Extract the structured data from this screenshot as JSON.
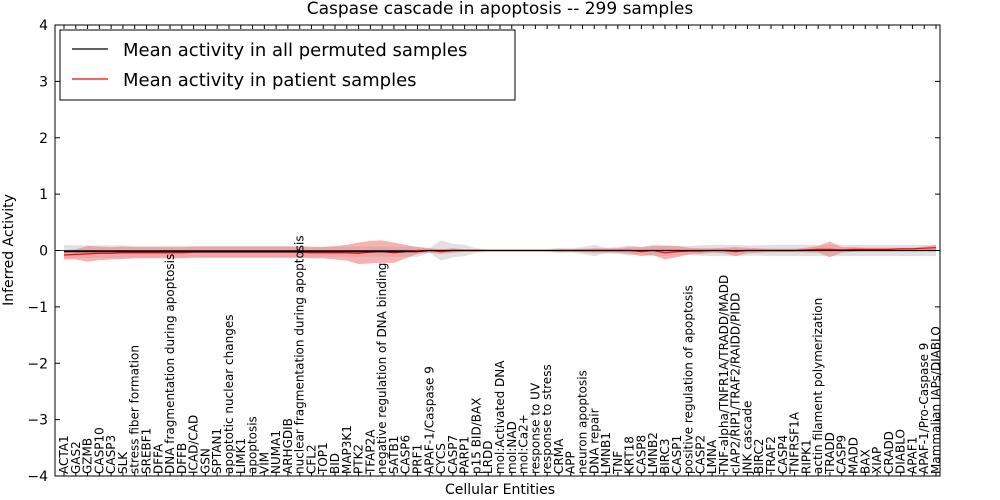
{
  "chart_data": {
    "type": "line",
    "title": "Caspase cascade in apoptosis -- 299 samples",
    "xlabel": "Cellular Entities",
    "ylabel": "Inferred Activity",
    "ylim": [
      -4,
      4
    ],
    "yticks": [
      -4,
      -3,
      -2,
      -1,
      0,
      1,
      2,
      3,
      4
    ],
    "ytick_labels": [
      "−4",
      "−3",
      "−2",
      "−1",
      "0",
      "1",
      "2",
      "3",
      "4"
    ],
    "legend_position": "top-left",
    "categories": [
      "ACTA1",
      "GAS2",
      "GZMB",
      "CASP10",
      "CASP3",
      "SLK",
      "stress fiber formation",
      "SREBF1",
      "DFFA",
      "DNA fragmentation during apoptosis",
      "DFFB",
      "ICAD/CAD",
      "GSN",
      "SPTAN1",
      "apoptotic nuclear changes",
      "LIMK1",
      "apoptosis",
      "VIM",
      "NUMA1",
      "ARHGDIB",
      "nuclear fragmentation during apoptosis",
      "CFL2",
      "TOP1",
      "BID",
      "MAP3K1",
      "PTK2",
      "TFAP2A",
      "negative regulation of DNA binding",
      "SATB1",
      "CASP6",
      "PRF1",
      "APAF-1/Caspase 9",
      "CYCS",
      "CASP7",
      "PARP1",
      "p15 BID/BAX",
      "LRDD",
      "mol:Activated DNA",
      "mol:NAD",
      "mol:Ca2+",
      "response to UV",
      "response to stress",
      "CRMA",
      "APP",
      "neuron apoptosis",
      "DNA repair",
      "LMNB1",
      "TNF",
      "KRT18",
      "CASP8",
      "LMNB2",
      "BIRC3",
      "CASP1",
      "positive regulation of apoptosis",
      "CASP2",
      "LMNA",
      "TNF-alpha/TNFR1A/TRADD/MADD",
      "cIAP2/RIP1/TRAF2/RAIDD/PIDD",
      "JNK cascade",
      "BIRC2",
      "TRAF2",
      "CASP4",
      "TNFRSF1A",
      "RIPK1",
      "actin filament polymerization",
      "TRADD",
      "CASP9",
      "MADD",
      "BAX",
      "XIAP",
      "CRADD",
      "DIABLO",
      "APAF1",
      "APAF-1/Pro-Caspase 9",
      "Mammalian IAPs/DIABLO"
    ],
    "series": [
      {
        "name": "Mean activity in all permuted samples",
        "color": "#000000",
        "values": [
          -0.02,
          -0.02,
          -0.02,
          -0.02,
          -0.02,
          -0.02,
          -0.02,
          -0.02,
          -0.02,
          -0.02,
          -0.02,
          -0.02,
          -0.02,
          -0.02,
          -0.02,
          -0.02,
          -0.02,
          -0.02,
          -0.02,
          -0.02,
          -0.02,
          -0.02,
          -0.02,
          -0.02,
          -0.02,
          -0.02,
          -0.02,
          -0.02,
          -0.02,
          -0.02,
          -0.02,
          0,
          0,
          0,
          0,
          0,
          0,
          0,
          0,
          0,
          0,
          0,
          0,
          0,
          0,
          0,
          0,
          0,
          0,
          0,
          0,
          0,
          0,
          0,
          0,
          0,
          0,
          0,
          0,
          0,
          0,
          0,
          0,
          0,
          0,
          0,
          0,
          0,
          0,
          0,
          0,
          0,
          0,
          0,
          0
        ],
        "band": [
          0.12,
          0.11,
          0.11,
          0.11,
          0.11,
          0.11,
          0.1,
          0.1,
          0.1,
          0.1,
          0.1,
          0.1,
          0.1,
          0.1,
          0.1,
          0.1,
          0.1,
          0.1,
          0.1,
          0.1,
          0.1,
          0.09,
          0.09,
          0.09,
          0.09,
          0.09,
          0.09,
          0.09,
          0.09,
          0.09,
          0.09,
          0.04,
          0.18,
          0.12,
          0.1,
          0.04,
          0.02,
          0.02,
          0.02,
          0.02,
          0.02,
          0.02,
          0.05,
          0.04,
          0.06,
          0.1,
          0.05,
          0.06,
          0.09,
          0.06,
          0.1,
          0.1,
          0.08,
          0.08,
          0.09,
          0.1,
          0.1,
          0.1,
          0.09,
          0.09,
          0.1,
          0.1,
          0.1,
          0.1,
          0.1,
          0.1,
          0.1,
          0.1,
          0.1,
          0.1,
          0.1,
          0.1,
          0.1,
          0.1,
          0.1
        ]
      },
      {
        "name": "Mean activity in patient samples",
        "color": "#ff0000",
        "band_color": "#f08080",
        "values": [
          -0.08,
          -0.07,
          -0.06,
          -0.05,
          -0.05,
          -0.04,
          -0.04,
          -0.04,
          -0.04,
          -0.04,
          -0.04,
          -0.03,
          -0.03,
          -0.03,
          -0.03,
          -0.03,
          -0.03,
          -0.03,
          -0.03,
          -0.03,
          -0.03,
          -0.04,
          -0.04,
          -0.04,
          -0.04,
          -0.05,
          -0.03,
          -0.02,
          -0.04,
          -0.02,
          0,
          0,
          -0.02,
          0,
          0,
          0,
          0,
          0,
          0,
          0,
          0,
          0,
          0,
          0,
          0,
          0,
          0,
          0,
          0,
          -0.02,
          0,
          -0.04,
          -0.02,
          -0.01,
          -0.01,
          0,
          0,
          -0.02,
          0,
          0,
          0,
          0,
          0,
          0.01,
          0.02,
          0.02,
          0.01,
          0.02,
          0.02,
          0.02,
          0.02,
          0.03,
          0.03,
          0.04,
          0.05
        ],
        "band": [
          0.08,
          0.09,
          0.14,
          0.12,
          0.11,
          0.11,
          0.1,
          0.1,
          0.1,
          0.1,
          0.1,
          0.1,
          0.1,
          0.1,
          0.1,
          0.1,
          0.1,
          0.1,
          0.1,
          0.1,
          0.1,
          0.1,
          0.1,
          0.12,
          0.14,
          0.19,
          0.2,
          0.2,
          0.18,
          0.12,
          0.06,
          0.04,
          0.04,
          0.04,
          0.02,
          0.02,
          0.01,
          0.01,
          0.01,
          0.01,
          0.01,
          0.01,
          0.02,
          0.02,
          0.03,
          0.04,
          0.04,
          0.04,
          0.06,
          0.08,
          0.08,
          0.12,
          0.1,
          0.06,
          0.05,
          0.04,
          0.05,
          0.08,
          0.05,
          0.04,
          0.03,
          0.03,
          0.03,
          0.04,
          0.06,
          0.14,
          0.05,
          0.04,
          0.03,
          0.03,
          0.03,
          0.02,
          0.02,
          0.03,
          0.05
        ]
      }
    ]
  }
}
